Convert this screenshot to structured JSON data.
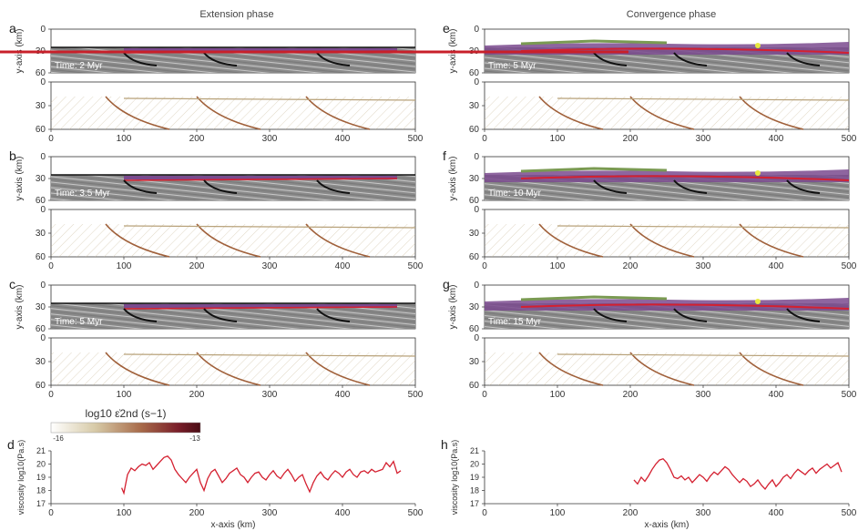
{
  "headings": {
    "left": "Extension phase",
    "right": "Convergence phase"
  },
  "labels": {
    "y_axis": "y-axis (km)",
    "x_axis": "x-axis (km)",
    "viscosity_axis": "viscosity log10(Pa.s)"
  },
  "colorbar": {
    "title": "log10 ε̇2nd (s−1)",
    "min_label": "-16",
    "max_label": "-13",
    "low_color": "#ffffff",
    "high_color": "#4a0c14"
  },
  "colors": {
    "mantle_gray": "#8a8a8a",
    "sediment_purple": "#7a4a8e",
    "shear_red": "#d42030",
    "strain_brown": "#a0603a",
    "strain_tan": "#b8a27a",
    "yellow_sed": "#e8e840",
    "green_sed": "#7a9a52",
    "slab_black": "#111111"
  },
  "panels": [
    {
      "letter": "a",
      "time": "Time: 2 Myr"
    },
    {
      "letter": "b",
      "time": "Time: 3.5 Myr"
    },
    {
      "letter": "c",
      "time": "Time: 5 Myr"
    },
    {
      "letter": "e",
      "time": "Time: 5 Myr"
    },
    {
      "letter": "f",
      "time": "Time: 10 Myr"
    },
    {
      "letter": "g",
      "time": "Time: 15 Myr"
    }
  ],
  "viscosity_panels": [
    {
      "letter": "d"
    },
    {
      "letter": "h"
    }
  ],
  "chart_data": [
    {
      "type": "line",
      "title": "",
      "xlabel": "x-axis (km)",
      "ylabel": "viscosity log10(Pa.s)",
      "xlim": [
        0,
        500
      ],
      "ylim": [
        17,
        21
      ],
      "xticks": [
        "0",
        "100",
        "200",
        "300",
        "400",
        "500"
      ],
      "yticks": [
        "17",
        "18",
        "19",
        "20",
        "21"
      ],
      "series": [
        {
          "color": "#d42030",
          "x": [
            97,
            100,
            105,
            110,
            115,
            120,
            125,
            130,
            135,
            140,
            145,
            150,
            155,
            160,
            165,
            170,
            175,
            180,
            185,
            190,
            195,
            200,
            205,
            210,
            215,
            220,
            225,
            230,
            235,
            240,
            245,
            250,
            255,
            260,
            265,
            270,
            275,
            280,
            285,
            290,
            295,
            300,
            305,
            310,
            315,
            320,
            325,
            330,
            335,
            340,
            345,
            350,
            355,
            360,
            365,
            370,
            375,
            380,
            385,
            390,
            395,
            400,
            405,
            410,
            415,
            420,
            425,
            430,
            435,
            440,
            445,
            450,
            455,
            460,
            465,
            470,
            475,
            480
          ],
          "y": [
            18.2,
            17.8,
            19.2,
            19.7,
            19.5,
            19.8,
            20.0,
            19.9,
            20.1,
            19.6,
            19.9,
            20.2,
            20.5,
            20.6,
            20.3,
            19.6,
            19.2,
            18.9,
            18.6,
            19.0,
            19.3,
            19.6,
            18.6,
            18.0,
            18.9,
            19.4,
            19.6,
            19.1,
            18.6,
            18.9,
            19.3,
            19.5,
            19.7,
            19.2,
            19.0,
            18.6,
            19.0,
            19.3,
            19.4,
            19.0,
            18.8,
            19.2,
            19.5,
            19.1,
            18.9,
            19.3,
            19.6,
            19.2,
            18.7,
            19.0,
            19.2,
            18.5,
            17.9,
            18.6,
            19.1,
            19.4,
            19.0,
            18.8,
            19.2,
            19.5,
            19.3,
            19.0,
            19.4,
            19.6,
            19.2,
            19.0,
            19.4,
            19.5,
            19.3,
            19.6,
            19.4,
            19.5,
            19.6,
            20.1,
            19.8,
            20.2,
            19.3,
            19.5
          ]
        }
      ]
    },
    {
      "type": "line",
      "title": "",
      "xlabel": "x-axis (km)",
      "ylabel": "viscosity log10(Pa.s)",
      "xlim": [
        0,
        500
      ],
      "ylim": [
        17,
        21
      ],
      "xticks": [
        "0",
        "100",
        "200",
        "300",
        "400",
        "500"
      ],
      "yticks": [
        "17",
        "18",
        "19",
        "20",
        "21"
      ],
      "series": [
        {
          "color": "#d42030",
          "x": [
            205,
            210,
            215,
            220,
            225,
            230,
            235,
            240,
            245,
            250,
            255,
            260,
            265,
            270,
            275,
            280,
            285,
            290,
            295,
            300,
            305,
            310,
            315,
            320,
            325,
            330,
            335,
            340,
            345,
            350,
            355,
            360,
            365,
            370,
            375,
            380,
            385,
            390,
            395,
            400,
            405,
            410,
            415,
            420,
            425,
            430,
            435,
            440,
            445,
            450,
            455,
            460,
            465,
            470,
            475,
            480,
            485,
            490
          ],
          "y": [
            18.8,
            18.5,
            19.0,
            18.7,
            19.1,
            19.6,
            20.0,
            20.3,
            20.4,
            20.1,
            19.6,
            19.0,
            18.9,
            19.1,
            18.8,
            19.0,
            18.6,
            18.9,
            19.2,
            19.0,
            18.7,
            19.1,
            19.4,
            19.2,
            19.5,
            19.8,
            19.6,
            19.2,
            18.9,
            18.6,
            18.9,
            18.7,
            18.3,
            18.5,
            18.8,
            18.4,
            18.1,
            18.5,
            18.8,
            18.3,
            18.6,
            19.0,
            19.2,
            18.9,
            19.3,
            19.6,
            19.4,
            19.2,
            19.5,
            19.7,
            19.3,
            19.6,
            19.8,
            20.0,
            19.7,
            19.9,
            20.1,
            19.4
          ]
        }
      ]
    }
  ]
}
